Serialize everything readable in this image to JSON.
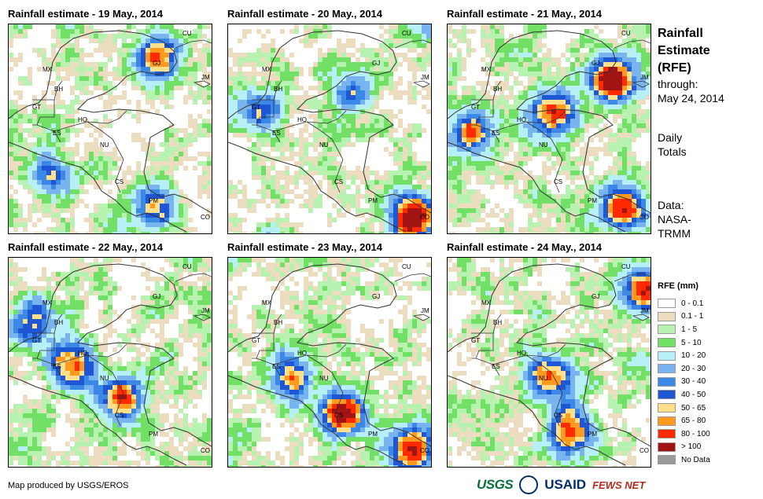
{
  "panels": [
    {
      "title": "Rainfall estimate - 19 May., 2014",
      "seed": 19,
      "focus": [
        [
          0.72,
          0.15,
          0.9
        ],
        [
          0.2,
          0.7,
          0.6
        ],
        [
          0.7,
          0.85,
          0.7
        ]
      ]
    },
    {
      "title": "Rainfall estimate - 20 May., 2014",
      "seed": 20,
      "focus": [
        [
          0.9,
          0.9,
          1.2
        ],
        [
          0.6,
          0.3,
          0.5
        ],
        [
          0.15,
          0.4,
          0.6
        ]
      ]
    },
    {
      "title": "Rainfall estimate - 21 May., 2014",
      "seed": 21,
      "focus": [
        [
          0.8,
          0.25,
          1.1
        ],
        [
          0.5,
          0.4,
          0.9
        ],
        [
          0.85,
          0.85,
          1.0
        ],
        [
          0.1,
          0.5,
          0.8
        ]
      ]
    },
    {
      "title": "Rainfall estimate - 22 May., 2014",
      "seed": 22,
      "focus": [
        [
          0.3,
          0.5,
          0.9
        ],
        [
          0.55,
          0.65,
          0.8
        ],
        [
          0.1,
          0.3,
          0.7
        ]
      ]
    },
    {
      "title": "Rainfall estimate - 23 May., 2014",
      "seed": 23,
      "focus": [
        [
          0.55,
          0.72,
          1.1
        ],
        [
          0.3,
          0.55,
          0.8
        ],
        [
          0.9,
          0.9,
          0.9
        ]
      ]
    },
    {
      "title": "Rainfall estimate - 24 May., 2014",
      "seed": 24,
      "focus": [
        [
          0.5,
          0.55,
          0.8
        ],
        [
          0.6,
          0.8,
          0.9
        ],
        [
          0.95,
          0.15,
          0.9
        ]
      ]
    }
  ],
  "map_labels": [
    "CU",
    "MX",
    "GJ",
    "JM",
    "BH",
    "GT",
    "HO",
    "ES",
    "NU",
    "CS",
    "PM",
    "CO"
  ],
  "sidebar": {
    "title_lines": [
      "Rainfall",
      "Estimate",
      "(RFE)"
    ],
    "through_label": "through:",
    "through_date": "May 24, 2014",
    "daily_lines": [
      "Daily",
      "Totals"
    ],
    "data_lines": [
      "Data:",
      "NASA-",
      "TRMM"
    ]
  },
  "legend": {
    "title": "RFE (mm)",
    "items": [
      {
        "label": "0 - 0.1",
        "color": "#ffffff"
      },
      {
        "label": "0.1 - 1",
        "color": "#ecdcc0"
      },
      {
        "label": "1 - 5",
        "color": "#b8f2b0"
      },
      {
        "label": "5 - 10",
        "color": "#72e066"
      },
      {
        "label": "10 - 20",
        "color": "#b6f0f6"
      },
      {
        "label": "20 - 30",
        "color": "#7ab4ee"
      },
      {
        "label": "30 - 40",
        "color": "#3c88e6"
      },
      {
        "label": "40 - 50",
        "color": "#1e56d4"
      },
      {
        "label": "50 - 65",
        "color": "#ffe08a"
      },
      {
        "label": "65 - 80",
        "color": "#ff9a1e"
      },
      {
        "label": "80 - 100",
        "color": "#ff2a00"
      },
      {
        "label": "> 100",
        "color": "#a01414"
      },
      {
        "label": "No Data",
        "color": "#9a9a9a"
      }
    ]
  },
  "footer": {
    "credit": "Map produced by USGS/EROS",
    "logos": [
      "USGS",
      "USAID",
      "FEWS NET"
    ]
  }
}
